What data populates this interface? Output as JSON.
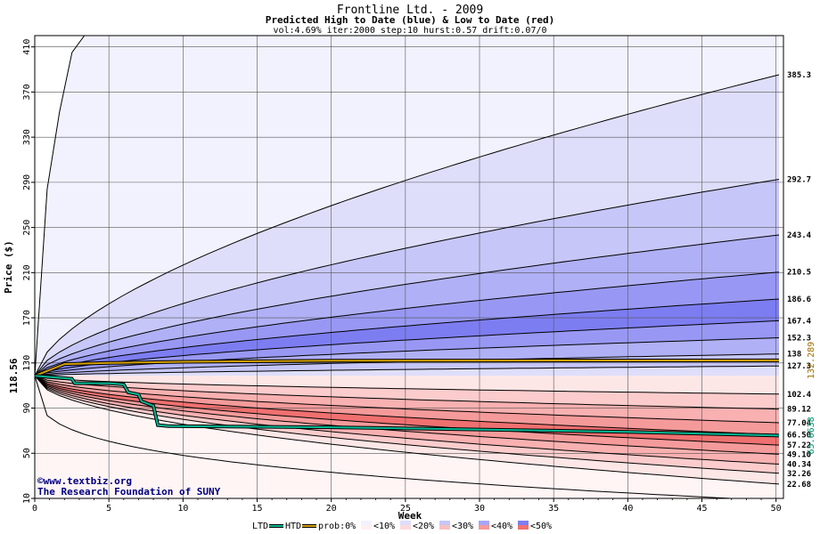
{
  "chart_data": {
    "type": "area",
    "title": "Frontline Ltd. - 2009",
    "subtitle": "Predicted High to Date (blue) &  Low to Date (red)",
    "params": "vol:4.69% iter:2000 step:10 hurst:0.57 drift:0.07/0",
    "xlabel": "Week",
    "ylabel": "Price ($)",
    "xlim": [
      0,
      50.5
    ],
    "ylim": [
      10,
      420
    ],
    "xticks": [
      0,
      5,
      10,
      15,
      20,
      25,
      30,
      35,
      40,
      45,
      50
    ],
    "yticks": [
      10,
      50,
      90,
      130,
      170,
      210,
      250,
      290,
      330,
      370,
      410
    ],
    "grid": true,
    "start_price": "118.56",
    "current_high": "132.289",
    "current_low": "65.6638",
    "colors": {
      "ltd": "#00b894",
      "htd": "#d4a000",
      "high_label": "#a07000",
      "low_label": "#00906a",
      "line": "#000000"
    },
    "high_bands": [
      {
        "label": "385.3",
        "end": 385.3
      },
      {
        "label": "292.7",
        "end": 292.7
      },
      {
        "label": "243.4",
        "end": 243.4
      },
      {
        "label": "210.5",
        "end": 210.5
      },
      {
        "label": "186.6",
        "end": 186.6
      },
      {
        "label": "167.4",
        "end": 167.4
      },
      {
        "label": "152.3",
        "end": 152.3
      },
      {
        "label": "138",
        "end": 138
      },
      {
        "label": "127.3",
        "end": 127.3
      }
    ],
    "low_bands": [
      {
        "label": "102.4",
        "end": 102.4
      },
      {
        "label": "89.12",
        "end": 89.12
      },
      {
        "label": "77.04",
        "end": 77.04
      },
      {
        "label": "66.50",
        "end": 66.5
      },
      {
        "label": "57.22",
        "end": 57.22
      },
      {
        "label": "49.10",
        "end": 49.1
      },
      {
        "label": "40.34",
        "end": 40.34
      },
      {
        "label": "32.26",
        "end": 32.26
      },
      {
        "label": "22.68",
        "end": 22.68
      }
    ],
    "htd_series": [
      [
        0,
        118.56
      ],
      [
        2,
        129
      ],
      [
        5,
        130
      ],
      [
        10,
        131
      ],
      [
        20,
        132
      ],
      [
        30,
        132.1
      ],
      [
        40,
        132.2
      ],
      [
        50.2,
        132.289
      ]
    ],
    "ltd_series": [
      [
        0,
        118.56
      ],
      [
        2.5,
        116
      ],
      [
        2.7,
        112
      ],
      [
        5,
        112
      ],
      [
        6,
        111
      ],
      [
        6.3,
        104
      ],
      [
        7,
        102
      ],
      [
        7.2,
        96
      ],
      [
        8,
        92
      ],
      [
        8.3,
        75
      ],
      [
        9,
        74
      ],
      [
        20,
        73
      ],
      [
        30,
        71
      ],
      [
        40,
        69
      ],
      [
        50.2,
        65.66
      ]
    ],
    "legend": [
      {
        "label": "LTD",
        "kind": "line",
        "color": "#00b894"
      },
      {
        "label": "HTD",
        "kind": "line",
        "color": "#d4a000"
      },
      {
        "label": "prob:0%",
        "kind": "text"
      },
      {
        "label": "<10%",
        "kind": "swatch",
        "top": "#f2f2ff",
        "bottom": "#fff0f0"
      },
      {
        "label": "<20%",
        "kind": "swatch",
        "top": "#dedefb",
        "bottom": "#fcdada"
      },
      {
        "label": "<30%",
        "kind": "swatch",
        "top": "#c6c6f8",
        "bottom": "#f9c0c0"
      },
      {
        "label": "<40%",
        "kind": "swatch",
        "top": "#a6a6f5",
        "bottom": "#f59a9a"
      },
      {
        "label": "<50%",
        "kind": "swatch",
        "top": "#7d7df2",
        "bottom": "#f07070"
      }
    ],
    "watermark_line1": "©www.textbiz.org",
    "watermark_line2": "The Research Foundation of SUNY"
  }
}
